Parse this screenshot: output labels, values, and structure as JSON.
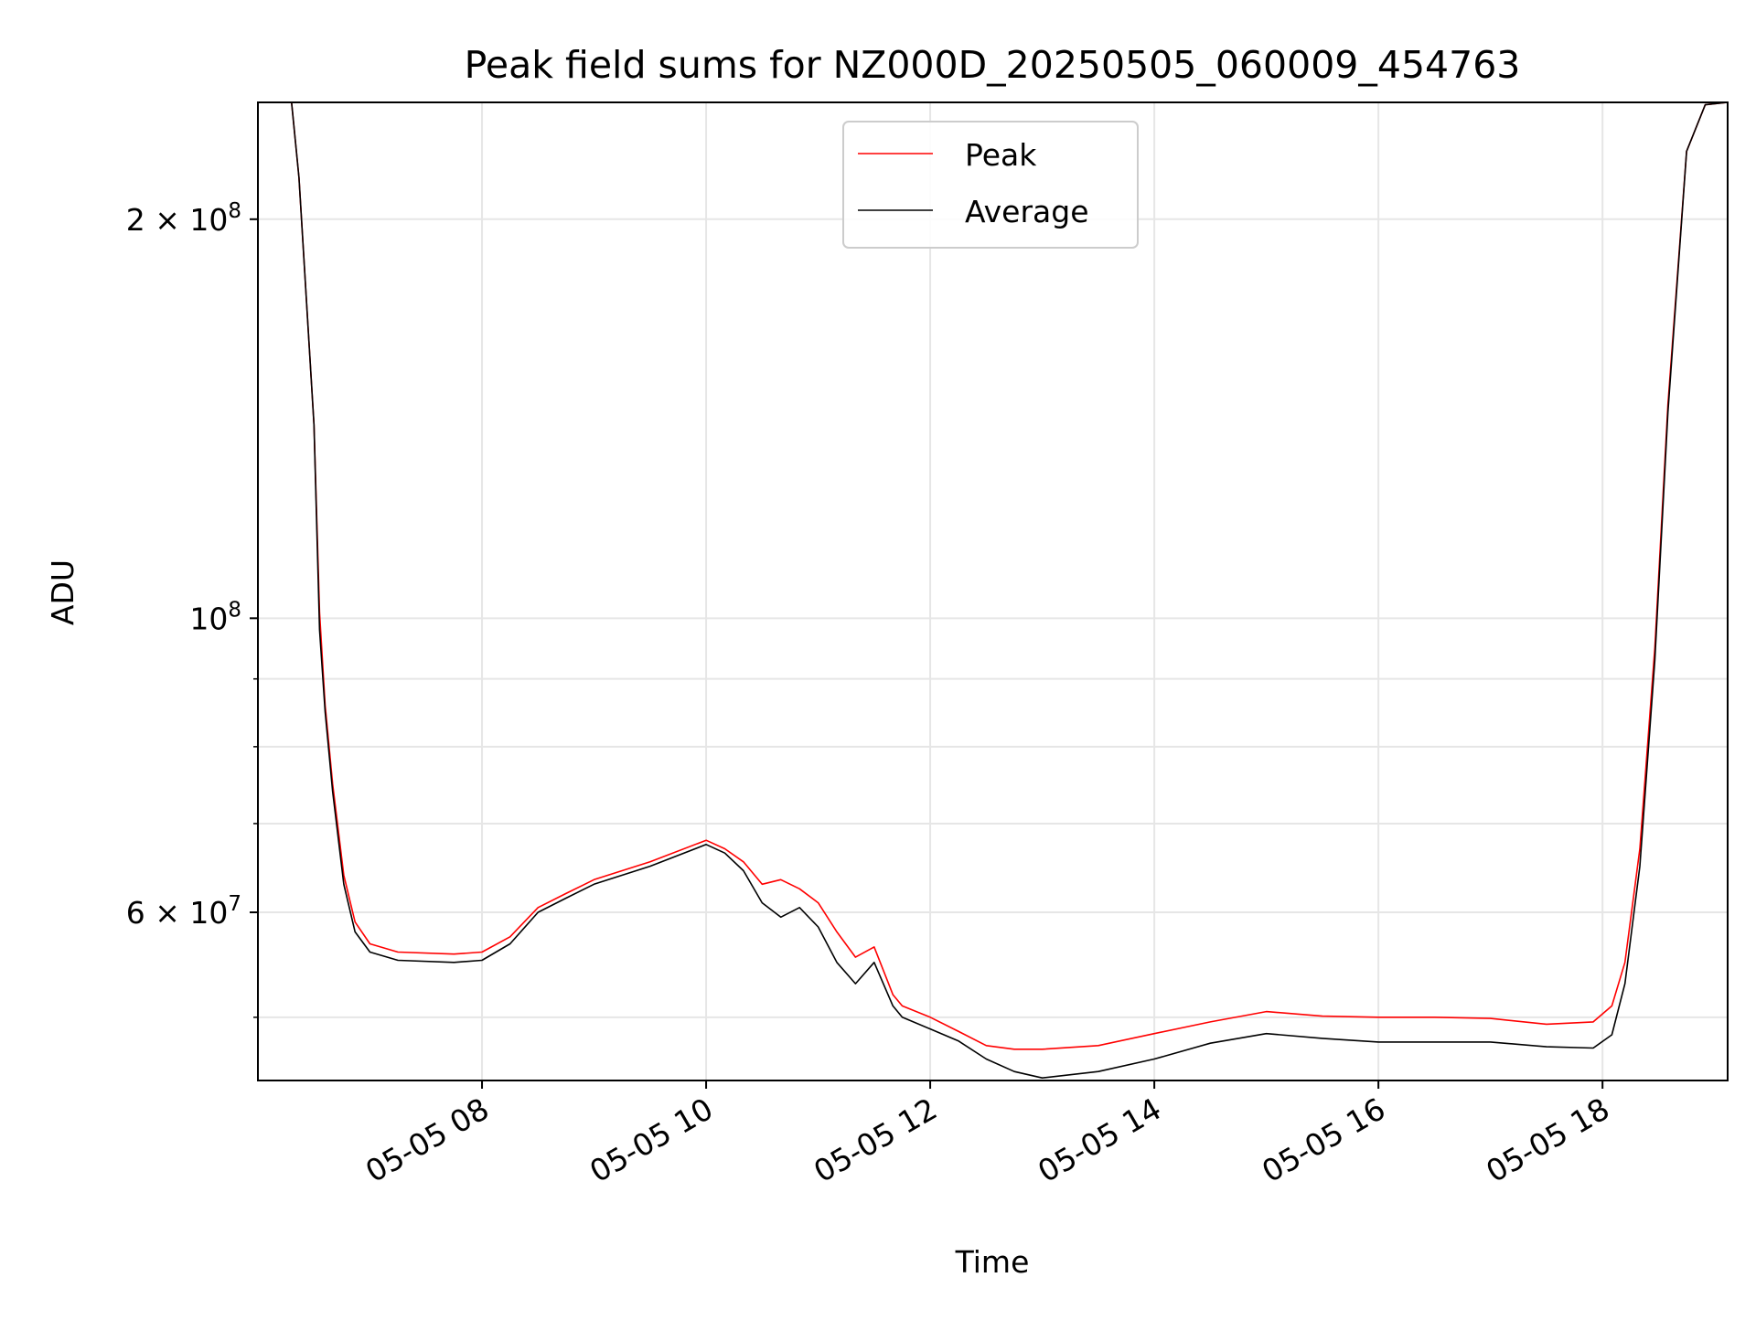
{
  "chart_data": {
    "type": "line",
    "title": "Peak field sums for NZ000D_20250505_060009_454763",
    "xlabel": "Time",
    "ylabel": "ADU",
    "yscale": "log",
    "grid": true,
    "legend": {
      "placement": "top-center",
      "entries": [
        "Peak",
        "Average"
      ]
    },
    "xlim": [
      "2025-05-05 06:00",
      "2025-05-05 19:07"
    ],
    "ylim": [
      44800000,
      245000000
    ],
    "x_ticks": [
      {
        "value": "2025-05-05 08:00",
        "label": "05-05 08"
      },
      {
        "value": "2025-05-05 10:00",
        "label": "05-05 10"
      },
      {
        "value": "2025-05-05 12:00",
        "label": "05-05 12"
      },
      {
        "value": "2025-05-05 14:00",
        "label": "05-05 14"
      },
      {
        "value": "2025-05-05 16:00",
        "label": "05-05 16"
      },
      {
        "value": "2025-05-05 18:00",
        "label": "05-05 18"
      }
    ],
    "y_major_ticks": [
      {
        "value": 60000000,
        "mantissa": "6",
        "exponent": "7"
      },
      {
        "value": 100000000,
        "mantissa": "",
        "exponent": "8"
      },
      {
        "value": 200000000,
        "mantissa": "2",
        "exponent": "8"
      }
    ],
    "y_minor_ticks": [
      50000000,
      70000000,
      80000000,
      90000000
    ],
    "series": [
      {
        "name": "Peak",
        "color": "#ff0000",
        "x": [
          "2025-05-05 06:00",
          "2025-05-05 06:18",
          "2025-05-05 06:22",
          "2025-05-05 06:30",
          "2025-05-05 06:33",
          "2025-05-05 06:36",
          "2025-05-05 06:40",
          "2025-05-05 06:46",
          "2025-05-05 06:52",
          "2025-05-05 07:00",
          "2025-05-05 07:15",
          "2025-05-05 07:45",
          "2025-05-05 08:00",
          "2025-05-05 08:15",
          "2025-05-05 08:30",
          "2025-05-05 08:45",
          "2025-05-05 09:00",
          "2025-05-05 09:30",
          "2025-05-05 10:00",
          "2025-05-05 10:10",
          "2025-05-05 10:20",
          "2025-05-05 10:30",
          "2025-05-05 10:40",
          "2025-05-05 10:50",
          "2025-05-05 11:00",
          "2025-05-05 11:10",
          "2025-05-05 11:20",
          "2025-05-05 11:30",
          "2025-05-05 11:40",
          "2025-05-05 11:45",
          "2025-05-05 12:00",
          "2025-05-05 12:15",
          "2025-05-05 12:30",
          "2025-05-05 12:45",
          "2025-05-05 13:00",
          "2025-05-05 13:30",
          "2025-05-05 14:00",
          "2025-05-05 14:30",
          "2025-05-05 15:00",
          "2025-05-05 15:30",
          "2025-05-05 16:00",
          "2025-05-05 16:30",
          "2025-05-05 17:00",
          "2025-05-05 17:30",
          "2025-05-05 17:55",
          "2025-05-05 18:05",
          "2025-05-05 18:12",
          "2025-05-05 18:20",
          "2025-05-05 18:28",
          "2025-05-05 18:35",
          "2025-05-05 18:45",
          "2025-05-05 18:55",
          "2025-05-05 19:07"
        ],
        "values": [
          245000000,
          245000000,
          215000000,
          140000000,
          101000000,
          86000000,
          75000000,
          64000000,
          59000000,
          56800000,
          56000000,
          55800000,
          56000000,
          57500000,
          60500000,
          62000000,
          63500000,
          65500000,
          68000000,
          67000000,
          65500000,
          63000000,
          63500000,
          62500000,
          61000000,
          58000000,
          55500000,
          56500000,
          52000000,
          51000000,
          50000000,
          48800000,
          47600000,
          47300000,
          47300000,
          47600000,
          48600000,
          49600000,
          50500000,
          50100000,
          50000000,
          50000000,
          49900000,
          49400000,
          49600000,
          51000000,
          55000000,
          67000000,
          95000000,
          145000000,
          225000000,
          244000000,
          245000000
        ]
      },
      {
        "name": "Average",
        "color": "#000000",
        "x": [
          "2025-05-05 06:00",
          "2025-05-05 06:18",
          "2025-05-05 06:22",
          "2025-05-05 06:30",
          "2025-05-05 06:33",
          "2025-05-05 06:36",
          "2025-05-05 06:40",
          "2025-05-05 06:46",
          "2025-05-05 06:52",
          "2025-05-05 07:00",
          "2025-05-05 07:15",
          "2025-05-05 07:45",
          "2025-05-05 08:00",
          "2025-05-05 08:15",
          "2025-05-05 08:30",
          "2025-05-05 08:45",
          "2025-05-05 09:00",
          "2025-05-05 09:30",
          "2025-05-05 10:00",
          "2025-05-05 10:10",
          "2025-05-05 10:20",
          "2025-05-05 10:30",
          "2025-05-05 10:40",
          "2025-05-05 10:50",
          "2025-05-05 11:00",
          "2025-05-05 11:10",
          "2025-05-05 11:20",
          "2025-05-05 11:30",
          "2025-05-05 11:40",
          "2025-05-05 11:45",
          "2025-05-05 12:00",
          "2025-05-05 12:15",
          "2025-05-05 12:30",
          "2025-05-05 12:45",
          "2025-05-05 13:00",
          "2025-05-05 13:30",
          "2025-05-05 14:00",
          "2025-05-05 14:30",
          "2025-05-05 15:00",
          "2025-05-05 15:30",
          "2025-05-05 16:00",
          "2025-05-05 16:30",
          "2025-05-05 17:00",
          "2025-05-05 17:30",
          "2025-05-05 17:55",
          "2025-05-05 18:05",
          "2025-05-05 18:12",
          "2025-05-05 18:20",
          "2025-05-05 18:28",
          "2025-05-05 18:35",
          "2025-05-05 18:45",
          "2025-05-05 18:55",
          "2025-05-05 19:07"
        ],
        "values": [
          245000000,
          245000000,
          215000000,
          140000000,
          98000000,
          85000000,
          74000000,
          63000000,
          58000000,
          56000000,
          55200000,
          55000000,
          55200000,
          56800000,
          60000000,
          61500000,
          63000000,
          65000000,
          67500000,
          66500000,
          64500000,
          61000000,
          59500000,
          60500000,
          58500000,
          55000000,
          53000000,
          55000000,
          51000000,
          50000000,
          49000000,
          48000000,
          46500000,
          45500000,
          45000000,
          45500000,
          46500000,
          47800000,
          48600000,
          48200000,
          47900000,
          47900000,
          47900000,
          47500000,
          47400000,
          48500000,
          53000000,
          65000000,
          93000000,
          143000000,
          225000000,
          244000000,
          245000000
        ]
      }
    ]
  }
}
